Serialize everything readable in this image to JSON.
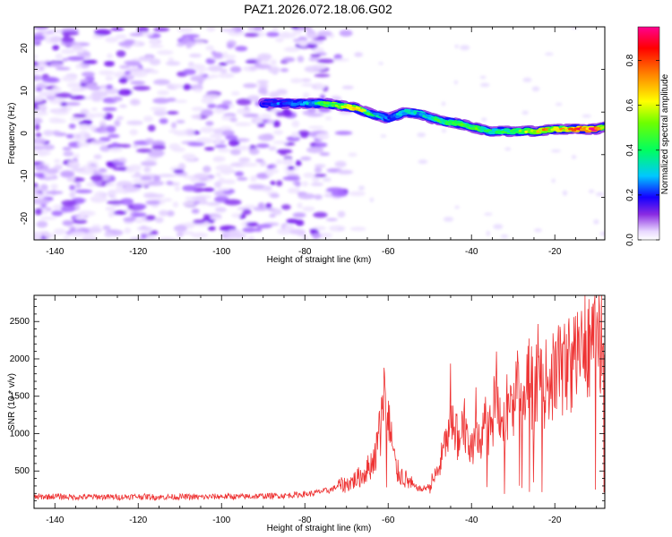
{
  "page": {
    "title": "PAZ1.2026.072.18.06.G02"
  },
  "chart_data": [
    {
      "id": "spectrogram",
      "type": "heatmap",
      "xlabel": "Height of straight line (km)",
      "ylabel": "Frequency (Hz)",
      "xlim": [
        -145,
        -8
      ],
      "ylim": [
        -25,
        25
      ],
      "xticks": [
        -140,
        -120,
        -100,
        -80,
        -60,
        -40,
        -20
      ],
      "yticks": [
        -20,
        -10,
        0,
        10,
        20
      ],
      "colorbar": {
        "label": "Normalized spectral amplitude",
        "range": [
          0,
          0.95
        ],
        "ticks": [
          0.0,
          0.2,
          0.4,
          0.6,
          0.8
        ]
      },
      "ridge": {
        "description_points": [
          [
            -90,
            7
          ],
          [
            -80,
            7
          ],
          [
            -75,
            7
          ],
          [
            -68,
            6
          ],
          [
            -64,
            4.5
          ],
          [
            -60,
            3.5
          ],
          [
            -56,
            5
          ],
          [
            -52,
            4.5
          ],
          [
            -48,
            3
          ],
          [
            -44,
            2.5
          ],
          [
            -40,
            1.5
          ],
          [
            -36,
            0.5
          ],
          [
            -32,
            0.5
          ],
          [
            -28,
            0.5
          ],
          [
            -24,
            0.5
          ],
          [
            -20,
            1
          ],
          [
            -15,
            1
          ],
          [
            -10,
            1
          ],
          [
            -8,
            1.5
          ]
        ],
        "peak_amplitudes": [
          [
            -90,
            0.2
          ],
          [
            -80,
            0.25
          ],
          [
            -74,
            0.55
          ],
          [
            -68,
            0.6
          ],
          [
            -64,
            0.35
          ],
          [
            -60,
            0.25
          ],
          [
            -56,
            0.35
          ],
          [
            -52,
            0.3
          ],
          [
            -48,
            0.4
          ],
          [
            -44,
            0.45
          ],
          [
            -40,
            0.45
          ],
          [
            -36,
            0.35
          ],
          [
            -32,
            0.4
          ],
          [
            -28,
            0.5
          ],
          [
            -24,
            0.65
          ],
          [
            -20,
            0.55
          ],
          [
            -15,
            0.7
          ],
          [
            -11,
            0.9
          ],
          [
            -8,
            0.5
          ]
        ]
      },
      "noise_region_km": [
        -145,
        -75
      ]
    },
    {
      "id": "snr",
      "type": "line",
      "xlabel": "Height of straight line (km)",
      "ylabel": "SNR (10 * v/v)",
      "xlim": [
        -145,
        -8
      ],
      "ylim": [
        0,
        2850
      ],
      "xticks": [
        -140,
        -120,
        -100,
        -80,
        -60,
        -40,
        -20
      ],
      "yticks": [
        500,
        1000,
        1500,
        2000,
        2500
      ],
      "color": "#ee3333",
      "series": [
        {
          "name": "SNR",
          "x": [
            -145,
            -140,
            -135,
            -130,
            -125,
            -120,
            -115,
            -110,
            -105,
            -100,
            -95,
            -90,
            -85,
            -80,
            -78,
            -76,
            -74,
            -72,
            -70,
            -68,
            -66,
            -64,
            -62,
            -61,
            -60,
            -59,
            -58,
            -56,
            -54,
            -52,
            -50,
            -48,
            -47,
            -46,
            -45,
            -44,
            -43,
            -42,
            -41,
            -40,
            -39,
            -38,
            -37,
            -36,
            -35,
            -34,
            -33,
            -32,
            -31,
            -30,
            -29,
            -28,
            -27,
            -26,
            -25,
            -24,
            -23,
            -22,
            -21,
            -20,
            -19,
            -18,
            -17,
            -16,
            -15,
            -14,
            -13,
            -12,
            -11,
            -10,
            -9,
            -8
          ],
          "y": [
            150,
            160,
            150,
            155,
            150,
            160,
            150,
            155,
            150,
            160,
            155,
            165,
            170,
            190,
            200,
            230,
            240,
            300,
            320,
            380,
            450,
            600,
            900,
            1500,
            1300,
            800,
            500,
            400,
            300,
            250,
            300,
            500,
            700,
            900,
            1100,
            1000,
            900,
            1200,
            1000,
            700,
            1100,
            900,
            1300,
            1000,
            1100,
            1700,
            1000,
            1100,
            1300,
            1400,
            1700,
            1200,
            1500,
            1800,
            1400,
            1900,
            1500,
            1700,
            1800,
            1700,
            2000,
            1800,
            2000,
            1900,
            2000,
            2200,
            2100,
            2300,
            2200,
            2400,
            2300,
            2400
          ]
        }
      ]
    }
  ]
}
